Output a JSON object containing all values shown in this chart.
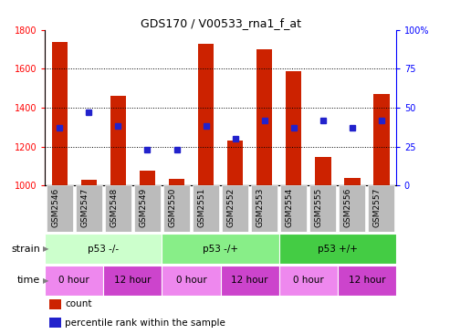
{
  "title": "GDS170 / V00533_rna1_f_at",
  "samples": [
    "GSM2546",
    "GSM2547",
    "GSM2548",
    "GSM2549",
    "GSM2550",
    "GSM2551",
    "GSM2552",
    "GSM2553",
    "GSM2554",
    "GSM2555",
    "GSM2556",
    "GSM2557"
  ],
  "counts": [
    1740,
    1030,
    1460,
    1075,
    1035,
    1730,
    1230,
    1700,
    1590,
    1145,
    1040,
    1470
  ],
  "percentiles": [
    37,
    47,
    38,
    23,
    23,
    38,
    30,
    42,
    37,
    42,
    37,
    42
  ],
  "bar_color": "#cc2200",
  "dot_color": "#2222cc",
  "ylim_left": [
    1000,
    1800
  ],
  "ylim_right": [
    0,
    100
  ],
  "yticks_left": [
    1000,
    1200,
    1400,
    1600,
    1800
  ],
  "yticks_right": [
    0,
    25,
    50,
    75,
    100
  ],
  "ytick_right_labels": [
    "0",
    "25",
    "50",
    "75",
    "100%"
  ],
  "grid_levels": [
    1200,
    1400,
    1600
  ],
  "bg_color": "#ffffff",
  "tick_bg_color": "#bbbbbb",
  "strain_groups": [
    {
      "label": "p53 -/-",
      "start": 0,
      "end": 4,
      "color": "#ccffcc"
    },
    {
      "label": "p53 -/+",
      "start": 4,
      "end": 8,
      "color": "#88ee88"
    },
    {
      "label": "p53 +/+",
      "start": 8,
      "end": 12,
      "color": "#44cc44"
    }
  ],
  "time_groups": [
    {
      "label": "0 hour",
      "start": 0,
      "end": 2,
      "color": "#ee88ee"
    },
    {
      "label": "12 hour",
      "start": 2,
      "end": 4,
      "color": "#cc44cc"
    },
    {
      "label": "0 hour",
      "start": 4,
      "end": 6,
      "color": "#ee88ee"
    },
    {
      "label": "12 hour",
      "start": 6,
      "end": 8,
      "color": "#cc44cc"
    },
    {
      "label": "0 hour",
      "start": 8,
      "end": 10,
      "color": "#ee88ee"
    },
    {
      "label": "12 hour",
      "start": 10,
      "end": 12,
      "color": "#cc44cc"
    }
  ],
  "legend_items": [
    {
      "label": "count",
      "color": "#cc2200"
    },
    {
      "label": "percentile rank within the sample",
      "color": "#2222cc"
    }
  ]
}
